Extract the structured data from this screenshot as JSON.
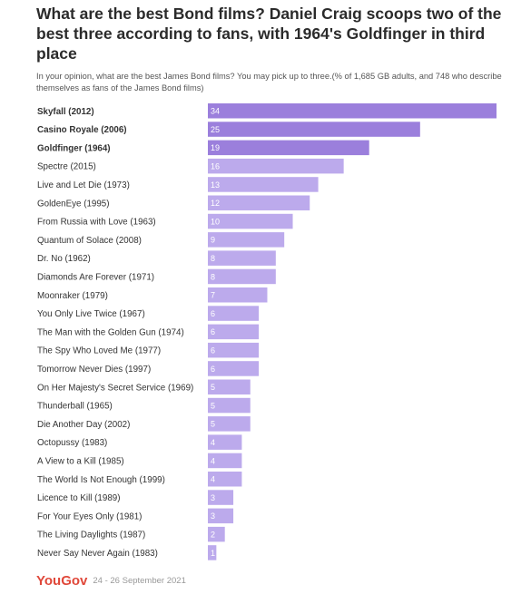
{
  "header": {
    "title": "What are the best Bond films? Daniel Craig scoops two of the best three according to fans, with 1964's Goldfinger in third place",
    "subtitle": "In your opinion, what are the best James Bond films? You may pick up to three.(% of 1,685 GB adults, and 748 who describe themselves as fans of the James Bond films)"
  },
  "footer": {
    "logo": "YouGov",
    "date": "24 - 26 September 2021"
  },
  "colors": {
    "top_bar": "#9b7fdc",
    "bar": "#bcaaec",
    "label_text": "#333333",
    "value_text": "#ffffff"
  },
  "chart_data": {
    "type": "bar",
    "orientation": "horizontal",
    "categories": [
      "Skyfall (2012)",
      "Casino Royale (2006)",
      "Goldfinger (1964)",
      "Spectre (2015)",
      "Live and Let Die (1973)",
      "GoldenEye (1995)",
      "From Russia with Love (1963)",
      "Quantum of Solace (2008)",
      "Dr. No (1962)",
      "Diamonds Are Forever (1971)",
      "Moonraker (1979)",
      "You Only Live Twice (1967)",
      "The Man with the Golden Gun (1974)",
      "The Spy Who Loved Me (1977)",
      "Tomorrow Never Dies (1997)",
      "On Her Majesty's Secret Service (1969)",
      "Thunderball (1965)",
      "Die Another Day (2002)",
      "Octopussy (1983)",
      "A View to a Kill (1985)",
      "The World Is Not Enough (1999)",
      "Licence to Kill (1989)",
      "For Your Eyes Only (1981)",
      "The Living Daylights (1987)",
      "Never Say Never Again (1983)"
    ],
    "values": [
      34,
      25,
      19,
      16,
      13,
      12,
      10,
      9,
      8,
      8,
      7,
      6,
      6,
      6,
      6,
      5,
      5,
      5,
      4,
      4,
      4,
      3,
      3,
      2,
      1
    ],
    "highlighted": [
      0,
      1,
      2
    ],
    "xlim": [
      0,
      34
    ],
    "grid": false
  }
}
